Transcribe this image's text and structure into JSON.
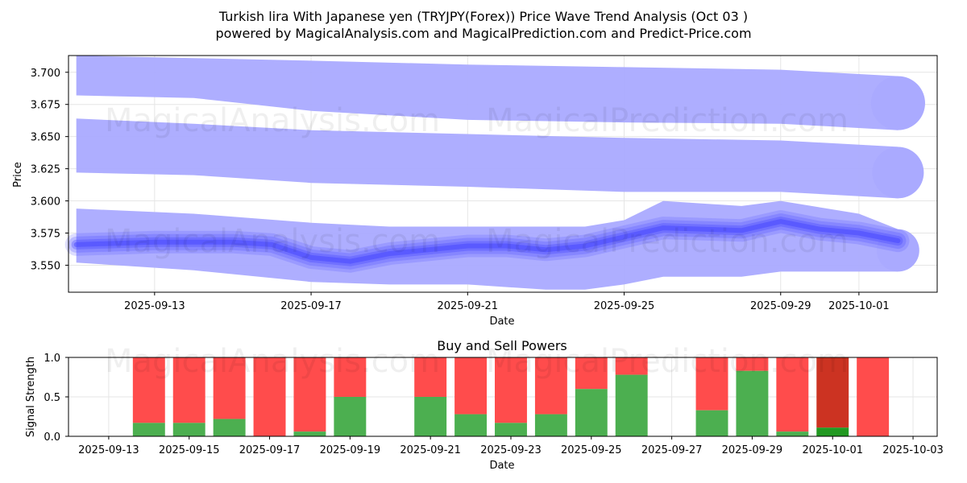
{
  "title_line1": "Turkish lira With Japanese yen (TRYJPY(Forex)) Price Wave Trend Analysis (Oct 03 )",
  "title_line2": "powered by MagicalAnalysis.com and MagicalPrediction.com and Predict-Price.com",
  "watermarks": [
    "MagicalAnalysis.com",
    "MagicalPrediction.com"
  ],
  "colors": {
    "band": "#aaaaff",
    "wave": "#4040ff",
    "buy": "#4caf50",
    "sell": "#ff4c4c",
    "sell_dark": "#cc3322",
    "buy_dark": "#229922"
  },
  "chart_data": [
    {
      "type": "area",
      "title": "",
      "xlabel": "Date",
      "ylabel": "Price",
      "ylim": [
        3.529,
        3.713
      ],
      "xlim": [
        "2025-09-10.8",
        "2025-10-03"
      ],
      "x_ticks": [
        "2025-09-13",
        "2025-09-17",
        "2025-09-21",
        "2025-09-25",
        "2025-09-29",
        "2025-10-01"
      ],
      "y_ticks": [
        "3.550",
        "3.575",
        "3.600",
        "3.625",
        "3.650",
        "3.675",
        "3.700"
      ],
      "series": [
        {
          "name": "upper band",
          "x": [
            "09-11",
            "09-14",
            "09-17",
            "09-21",
            "09-25",
            "09-29",
            "10-02"
          ],
          "upper": [
            3.713,
            3.711,
            3.709,
            3.706,
            3.704,
            3.702,
            3.697
          ],
          "lower": [
            3.682,
            3.68,
            3.67,
            3.663,
            3.661,
            3.66,
            3.655
          ]
        },
        {
          "name": "middle band",
          "x": [
            "09-11",
            "09-14",
            "09-17",
            "09-21",
            "09-25",
            "09-29",
            "10-02"
          ],
          "upper": [
            3.664,
            3.66,
            3.655,
            3.652,
            3.649,
            3.647,
            3.642
          ],
          "lower": [
            3.622,
            3.62,
            3.614,
            3.611,
            3.607,
            3.607,
            3.602
          ]
        },
        {
          "name": "lower band",
          "x": [
            "09-11",
            "09-14",
            "09-17",
            "09-19",
            "09-21",
            "09-23",
            "09-24",
            "09-25",
            "09-26",
            "09-28",
            "09-29",
            "10-01",
            "10-02"
          ],
          "upper": [
            3.594,
            3.59,
            3.583,
            3.58,
            3.58,
            3.58,
            3.58,
            3.585,
            3.6,
            3.596,
            3.6,
            3.59,
            3.578
          ],
          "lower": [
            3.552,
            3.546,
            3.537,
            3.535,
            3.535,
            3.531,
            3.531,
            3.535,
            3.541,
            3.541,
            3.545,
            3.545,
            3.545
          ]
        },
        {
          "name": "wave trend",
          "x": [
            "09-11",
            "09-13",
            "09-15",
            "09-16",
            "09-17",
            "09-18",
            "09-19",
            "09-21",
            "09-22",
            "09-23",
            "09-24",
            "09-25",
            "09-26",
            "09-28",
            "09-29",
            "09-30",
            "10-01",
            "10-02"
          ],
          "values": [
            3.566,
            3.568,
            3.568,
            3.566,
            3.556,
            3.553,
            3.559,
            3.565,
            3.565,
            3.562,
            3.565,
            3.572,
            3.579,
            3.577,
            3.584,
            3.578,
            3.575,
            3.569
          ]
        }
      ]
    },
    {
      "type": "bar",
      "title": "Buy and Sell Powers",
      "xlabel": "Date",
      "ylabel": "Signal Strength",
      "ylim": [
        0,
        1.0
      ],
      "x_ticks": [
        "2025-09-13",
        "2025-09-15",
        "2025-09-17",
        "2025-09-19",
        "2025-09-21",
        "2025-09-23",
        "2025-09-25",
        "2025-09-27",
        "2025-09-29",
        "2025-10-01",
        "2025-10-03"
      ],
      "y_ticks": [
        "0.0",
        "0.5",
        "1.0"
      ],
      "categories": [
        "2025-09-14",
        "2025-09-15",
        "2025-09-16",
        "2025-09-17",
        "2025-09-18",
        "2025-09-19",
        "2025-09-21",
        "2025-09-22",
        "2025-09-23",
        "2025-09-24",
        "2025-09-25",
        "2025-09-26",
        "2025-09-28",
        "2025-09-29",
        "2025-09-30",
        "2025-10-01",
        "2025-10-02"
      ],
      "series": [
        {
          "name": "Buy",
          "values": [
            0.17,
            0.17,
            0.22,
            0.0,
            0.06,
            0.5,
            0.5,
            0.28,
            0.17,
            0.28,
            0.6,
            0.78,
            0.33,
            0.83,
            0.06,
            0.11,
            0.0
          ]
        },
        {
          "name": "Sell",
          "values": [
            0.83,
            0.83,
            0.78,
            1.0,
            0.94,
            0.5,
            0.5,
            0.72,
            0.83,
            0.72,
            0.4,
            0.22,
            0.67,
            0.17,
            0.94,
            0.89,
            1.0
          ]
        }
      ]
    }
  ]
}
